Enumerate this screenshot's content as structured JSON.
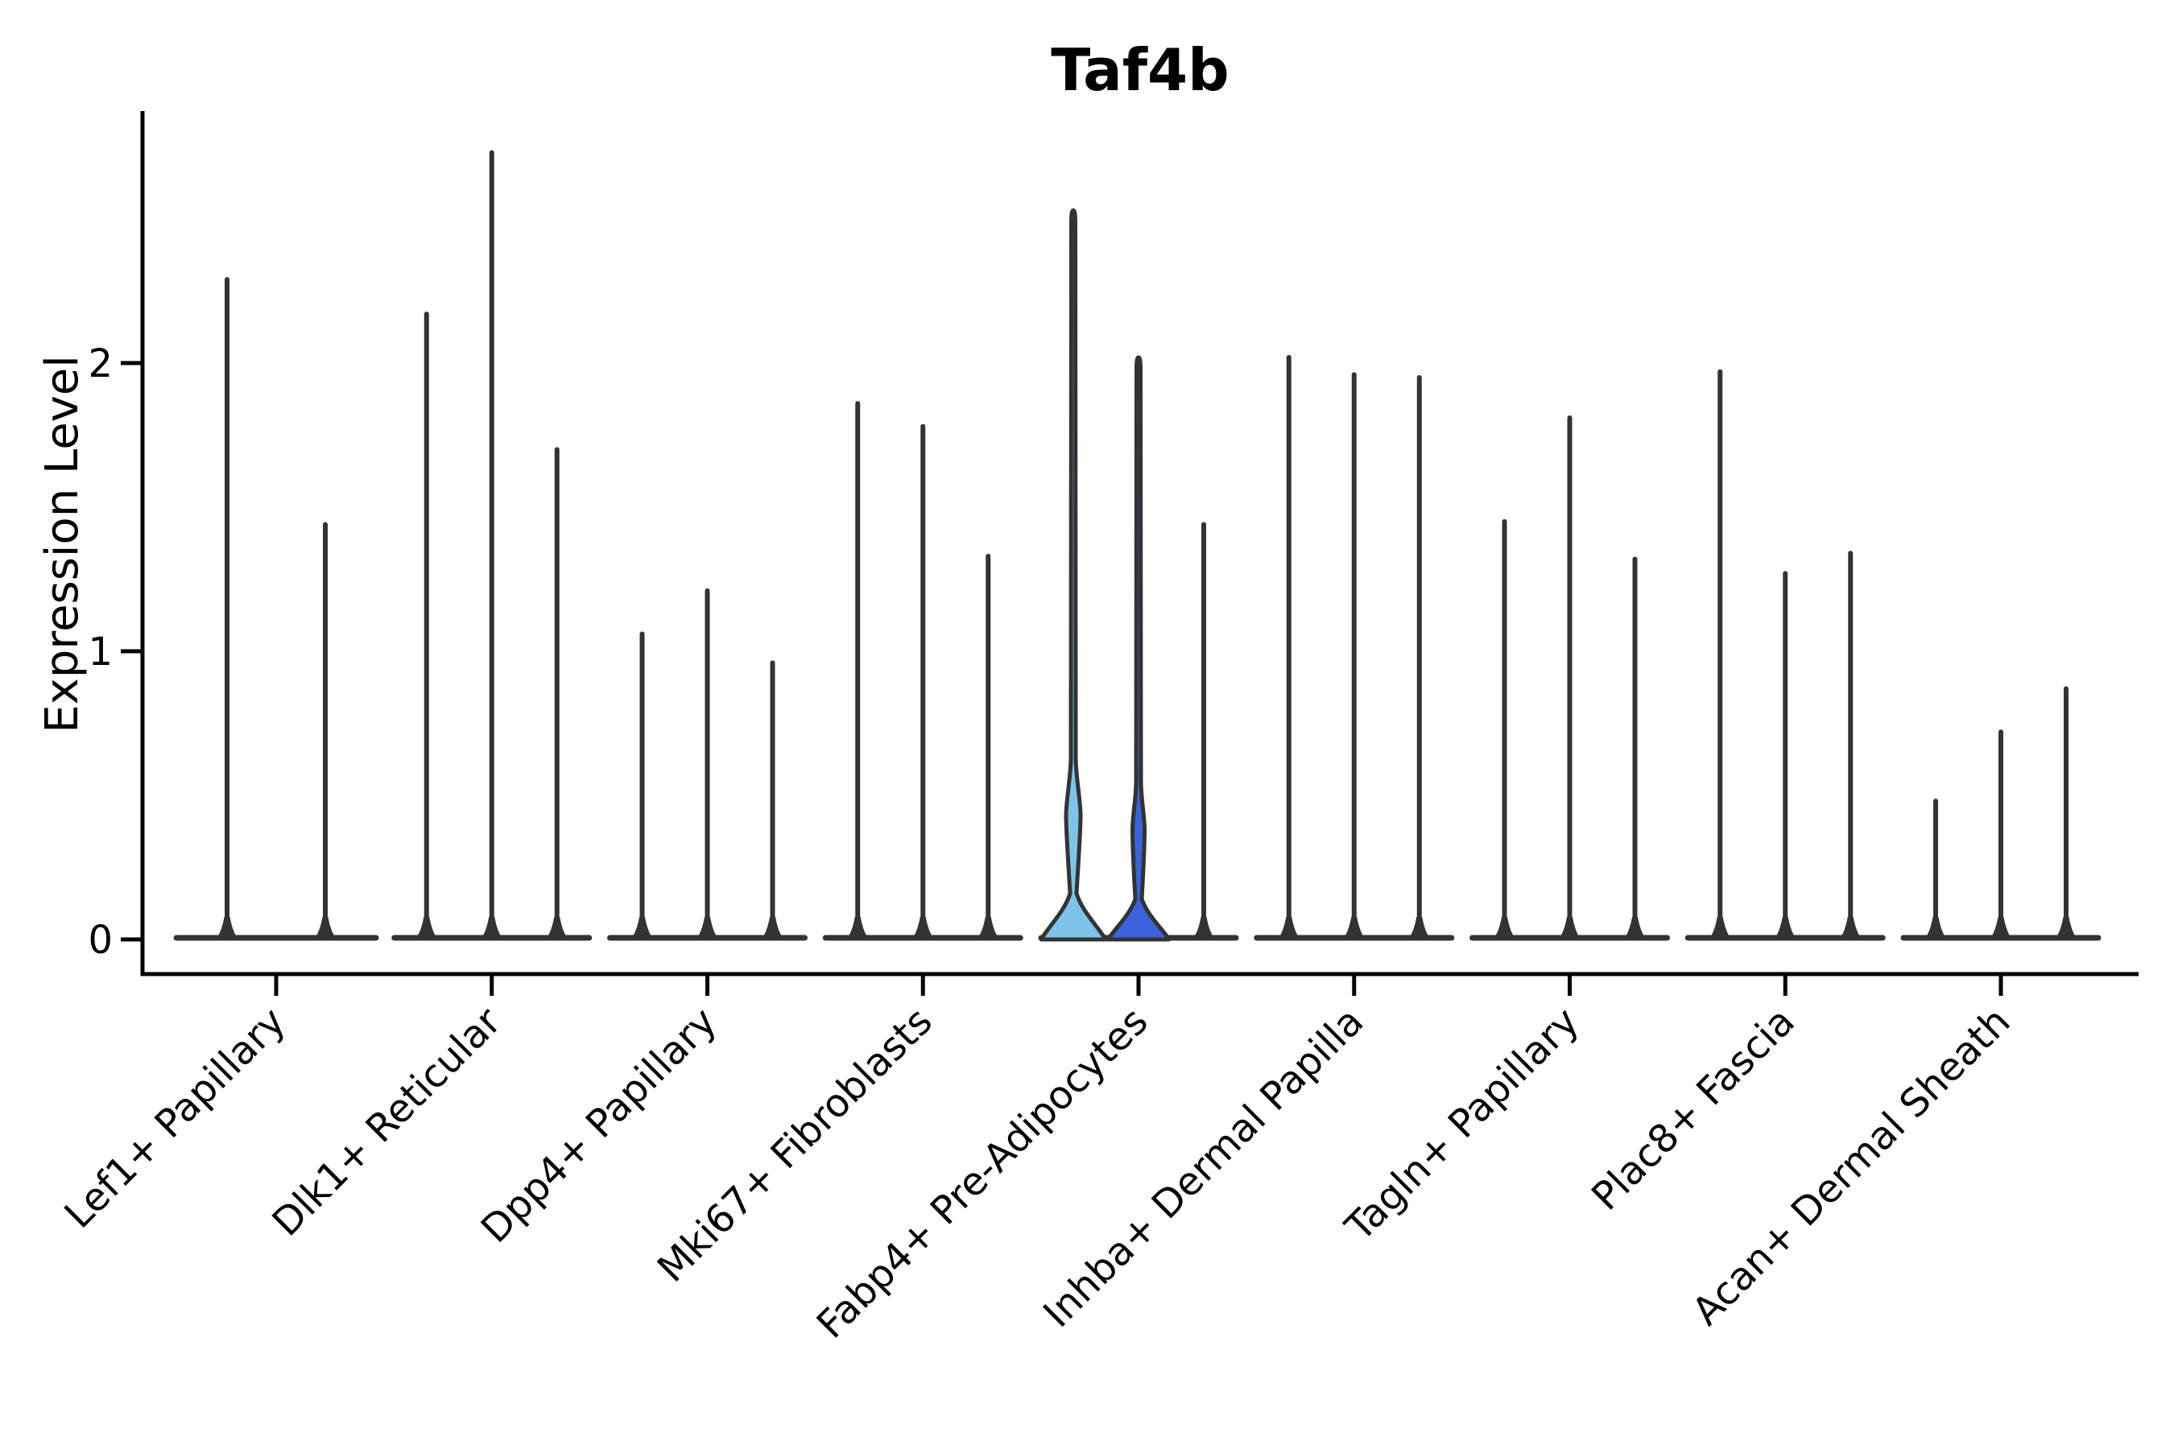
{
  "title": "Taf4b",
  "chart_data": {
    "type": "violin",
    "title": "Taf4b",
    "ylabel": "Expression Level",
    "xlabel": "",
    "yticks": [
      0,
      1,
      2
    ],
    "ytick_labels": [
      "0",
      "1",
      "2"
    ],
    "ylim": [
      -0.13,
      2.87
    ],
    "grid": false,
    "legend": null,
    "categories": [
      "Lef1+ Papillary",
      "Dlk1+ Reticular",
      "Dpp4+ Papillary",
      "Mki67+ Fibroblasts",
      "Fabp4+ Pre-Adipocytes",
      "Inhba+ Dermal Papilla",
      "Tagln+ Papillary",
      "Plac8+ Fascia",
      "Acan+ Dermal Sheath"
    ],
    "groups": [
      {
        "category": "Lef1+ Papillary",
        "violins": [
          {
            "max": 2.29
          },
          {
            "max": 1.44
          }
        ]
      },
      {
        "category": "Dlk1+ Reticular",
        "violins": [
          {
            "max": 2.17
          },
          {
            "max": 2.73
          },
          {
            "max": 1.7
          }
        ]
      },
      {
        "category": "Dpp4+ Papillary",
        "violins": [
          {
            "max": 1.06
          },
          {
            "max": 1.21
          },
          {
            "max": 0.96
          }
        ]
      },
      {
        "category": "Mki67+ Fibroblasts",
        "violins": [
          {
            "max": 1.86
          },
          {
            "max": 1.78
          },
          {
            "max": 1.33
          }
        ]
      },
      {
        "category": "Fabp4+ Pre-Adipocytes",
        "violins": [
          {
            "max": 2.53,
            "fill": "#7EC4E8",
            "body": {
              "base_halfwidth": 40,
              "base_top": 0.16,
              "bulge_from": 0.27,
              "bulge_peak": 0.43,
              "bulge_to": 0.63,
              "bulge_halfwidth": 9
            }
          },
          {
            "max": 2.02,
            "fill": "#3B63DB",
            "body": {
              "base_halfwidth": 38,
              "base_top": 0.14,
              "bulge_from": 0.24,
              "bulge_peak": 0.38,
              "bulge_to": 0.55,
              "bulge_halfwidth": 7.5
            }
          },
          {
            "max": 1.44
          }
        ]
      },
      {
        "category": "Inhba+ Dermal Papilla",
        "violins": [
          {
            "max": 2.02
          },
          {
            "max": 1.96
          },
          {
            "max": 1.95
          }
        ]
      },
      {
        "category": "Tagln+ Papillary",
        "violins": [
          {
            "max": 1.45
          },
          {
            "max": 1.81
          },
          {
            "max": 1.32
          }
        ]
      },
      {
        "category": "Plac8+ Fascia",
        "violins": [
          {
            "max": 1.97
          },
          {
            "max": 1.27
          },
          {
            "max": 1.34
          }
        ]
      },
      {
        "category": "Acan+ Dermal Sheath",
        "violins": [
          {
            "max": 0.48
          },
          {
            "max": 0.72
          },
          {
            "max": 0.87
          }
        ]
      }
    ],
    "colors": {
      "violin_outline": "#333333",
      "axis": "#000000",
      "text": "#000000",
      "fabp4_fill_light": "#7EC4E8",
      "fabp4_fill_dark": "#3B63DB",
      "background": "#ffffff"
    }
  }
}
